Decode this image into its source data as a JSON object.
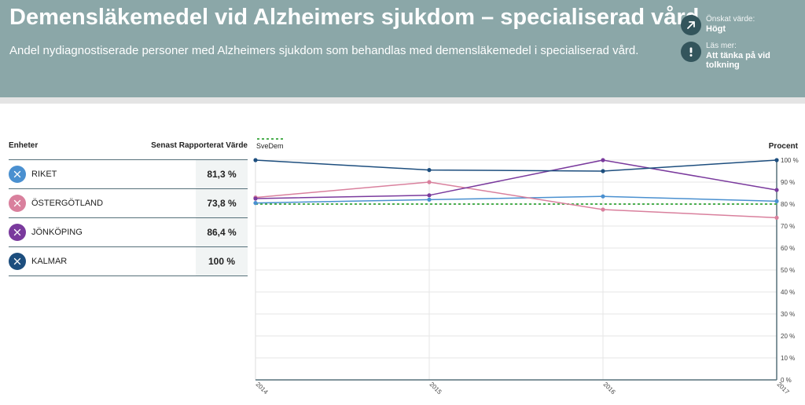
{
  "header": {
    "title": "Demensläkemedel vid Alzheimers sjukdom – specialiserad vård",
    "subtitle": "Andel nydiagnostiserade personer med Alzheimers sjukdom som behandlas med demensläkemedel i specialiserad vård.",
    "desired_label": "Önskat värde:",
    "desired_value": "Högt",
    "read_more_label": "Läs mer:",
    "read_more_link": "Att tänka på vid tolkning",
    "desired_icon": "arrow-up-right-icon",
    "info_icon": "exclamation-icon"
  },
  "table": {
    "col_units": "Enheter",
    "col_value": "Senast Rapporterat Värde",
    "rows": [
      {
        "name": "RIKET",
        "value": "81,3 %",
        "color": "#4a90d0",
        "icon": "close-icon"
      },
      {
        "name": "ÖSTERGÖTLAND",
        "value": "73,8 %",
        "color": "#d9809d",
        "icon": "close-icon"
      },
      {
        "name": "JÖNKÖPING",
        "value": "86,4 %",
        "color": "#7a3a9d",
        "icon": "close-icon"
      },
      {
        "name": "KALMAR",
        "value": "100 %",
        "color": "#1d4e7e",
        "icon": "close-icon"
      }
    ]
  },
  "chart_data": {
    "type": "line",
    "x": [
      "2014",
      "2015",
      "2016",
      "2017"
    ],
    "ylabel": "Procent",
    "ylim": [
      0,
      100
    ],
    "yticks": [
      "0 %",
      "10 %",
      "20 %",
      "30 %",
      "40 %",
      "50 %",
      "60 %",
      "70 %",
      "80 %",
      "90 %",
      "100 %"
    ],
    "grid": true,
    "reference": {
      "name": "SveDem",
      "value": 80,
      "color": "#4caf50"
    },
    "series": [
      {
        "name": "RIKET",
        "color": "#4a90d0",
        "values": [
          80.5,
          82.0,
          83.5,
          81.3
        ]
      },
      {
        "name": "ÖSTERGÖTLAND",
        "color": "#d9809d",
        "values": [
          83.0,
          90.0,
          77.5,
          73.8
        ]
      },
      {
        "name": "JÖNKÖPING",
        "color": "#7a3a9d",
        "values": [
          82.5,
          84.0,
          100.0,
          86.4
        ]
      },
      {
        "name": "KALMAR",
        "color": "#1d4e7e",
        "values": [
          100.0,
          95.5,
          95.0,
          100.0
        ]
      }
    ]
  }
}
